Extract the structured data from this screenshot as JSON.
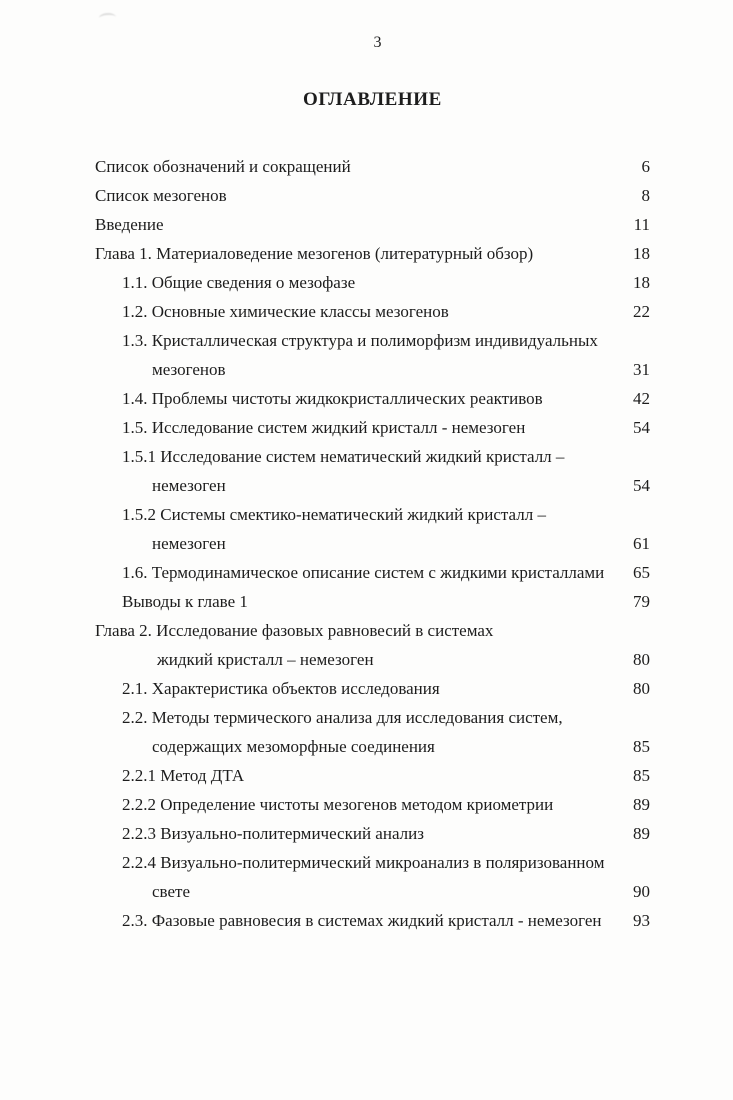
{
  "page": {
    "number": "3",
    "title": "ОГЛАВЛЕНИЕ"
  },
  "toc": {
    "entries": [
      {
        "level": 0,
        "lines": [
          "Список обозначений и сокращений"
        ],
        "page": "6"
      },
      {
        "level": 0,
        "lines": [
          "Список мезогенов"
        ],
        "page": "8"
      },
      {
        "level": 0,
        "lines": [
          "Введение"
        ],
        "page": "11"
      },
      {
        "level": 0,
        "lines": [
          "Глава 1. Материаловедение мезогенов (литературный обзор)"
        ],
        "page": "18"
      },
      {
        "level": 1,
        "lines": [
          "1.1. Общие сведения о мезофазе"
        ],
        "page": "18"
      },
      {
        "level": 1,
        "lines": [
          "1.2. Основные химические классы мезогенов"
        ],
        "page": "22"
      },
      {
        "level": 1,
        "lines": [
          "1.3. Кристаллическая структура и полиморфизм индивидуальных",
          "мезогенов"
        ],
        "page": "31"
      },
      {
        "level": 1,
        "lines": [
          "1.4. Проблемы чистоты жидкокристаллических реактивов"
        ],
        "page": "42"
      },
      {
        "level": 1,
        "lines": [
          "1.5. Исследование систем жидкий кристалл - немезоген"
        ],
        "page": "54"
      },
      {
        "level": 1,
        "lines": [
          "1.5.1 Исследование систем нематический жидкий кристалл –",
          "немезоген"
        ],
        "page": "54"
      },
      {
        "level": 1,
        "lines": [
          "1.5.2 Системы смектико-нематический жидкий кристалл –",
          "немезоген"
        ],
        "page": "61"
      },
      {
        "level": 1,
        "lines": [
          "1.6. Термодинамическое описание систем с жидкими кристаллами"
        ],
        "page": "65"
      },
      {
        "level": 1,
        "lines": [
          "Выводы к главе 1"
        ],
        "page": "79"
      },
      {
        "level": 0,
        "lines": [
          "Глава 2. Исследование фазовых равновесий в системах",
          "жидкий кристалл – немезоген"
        ],
        "page": "80"
      },
      {
        "level": 1,
        "lines": [
          "2.1. Характеристика объектов исследования"
        ],
        "page": "80"
      },
      {
        "level": 1,
        "lines": [
          "2.2. Методы термического анализа для исследования систем,",
          "содержащих мезоморфные соединения"
        ],
        "page": "85"
      },
      {
        "level": 1,
        "lines": [
          "2.2.1 Метод ДТА"
        ],
        "page": "85"
      },
      {
        "level": 1,
        "lines": [
          "2.2.2 Определение чистоты мезогенов методом криометрии"
        ],
        "page": "89"
      },
      {
        "level": 1,
        "lines": [
          "2.2.3 Визуально-политермический анализ"
        ],
        "page": "89"
      },
      {
        "level": 1,
        "lines": [
          "2.2.4 Визуально-политермический микроанализ в поляризованном",
          "свете"
        ],
        "page": "90"
      },
      {
        "level": 1,
        "lines": [
          "2.3. Фазовые равновесия в системах жидкий кристалл - немезоген"
        ],
        "page": "93"
      }
    ]
  }
}
